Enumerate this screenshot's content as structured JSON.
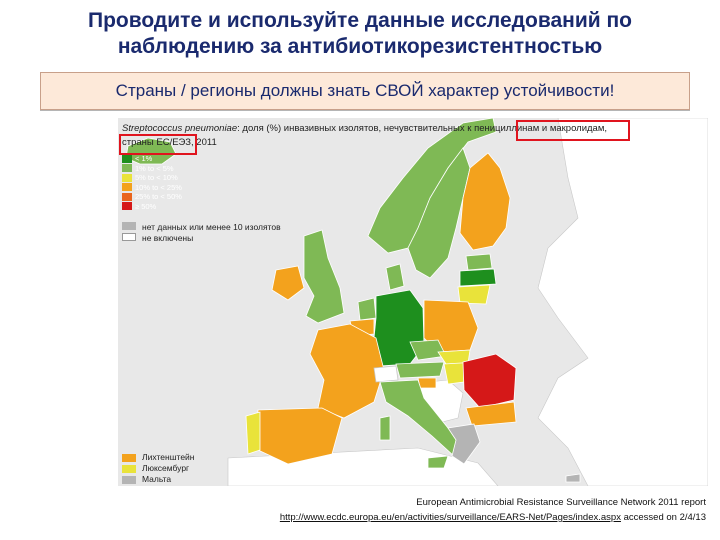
{
  "title": {
    "line1": "Проводите и используйте данные исследований по",
    "line2": "наблюдению за антибиотикорезистентностью"
  },
  "subtitle": "Страны / регионы должны знать СВОЙ характер устойчивости!",
  "map": {
    "caption_italic": "Streptococcus pneumoniae",
    "caption_rest": ": доля (%) инвазивных изолятов, нечувствительных к пенициллинам и макролидам,  страны ЕС/ЕЭЗ, 2011",
    "legend": [
      {
        "label": "< 1%",
        "color": "#1e8f1e"
      },
      {
        "label": "1% to < 5%",
        "color": "#7fb955"
      },
      {
        "label": "5% to < 10%",
        "color": "#e9e33a"
      },
      {
        "label": "10% to < 25%",
        "color": "#f3a21d"
      },
      {
        "label": "25% to < 50%",
        "color": "#e9651d"
      },
      {
        "label": "≥ 50%",
        "color": "#d51818"
      }
    ],
    "nodata_label": "нет данных или менее 10 изолятов",
    "notincluded_label": "не включены",
    "nodata_color": "#b4b4b4",
    "notincluded_color": "#ffffff",
    "small_countries": [
      {
        "label": "Лихтенштейн",
        "color": "#f3a21d"
      },
      {
        "label": "Люксембург",
        "color": "#e9e33a"
      },
      {
        "label": "Мальта",
        "color": "#b4b4b4"
      }
    ],
    "highlight_color": "#e0141e",
    "sea_color": "#e8e8e8"
  },
  "footer": {
    "line1": "European Antimicrobial Resistance Surveillance Network 2011 report",
    "link": "http://www.ecdc.europa.eu/en/activities/surveillance/EARS-Net/Pages/index.aspx",
    "accessed": " accessed on 2/4/13"
  }
}
